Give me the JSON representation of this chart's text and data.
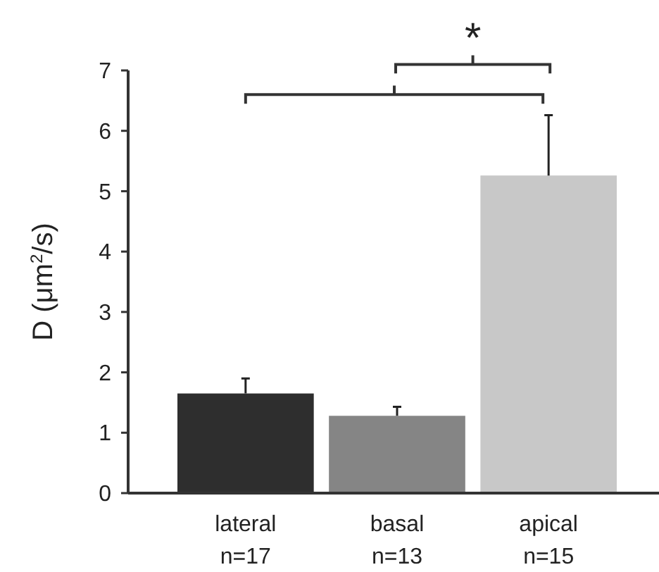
{
  "chart_data": {
    "type": "bar",
    "ylabel": "D (μm$^{2}$/s)",
    "categories": [
      "lateral\nn=17",
      "basal\nn=13",
      "apical\nn=15"
    ],
    "values": [
      1.65,
      1.28,
      5.26
    ],
    "colors": [
      "#2e2e2e",
      "#858585",
      "#c8c8c8"
    ],
    "errors": [
      [
        1.65,
        1.9
      ],
      [
        1.28,
        1.43
      ],
      [
        5.26,
        6.26
      ]
    ],
    "ylim": [
      0,
      7
    ],
    "yticks": [
      0,
      1,
      2,
      3,
      4,
      5,
      6,
      7
    ],
    "grid": false,
    "annotations": [
      "*"
    ]
  }
}
